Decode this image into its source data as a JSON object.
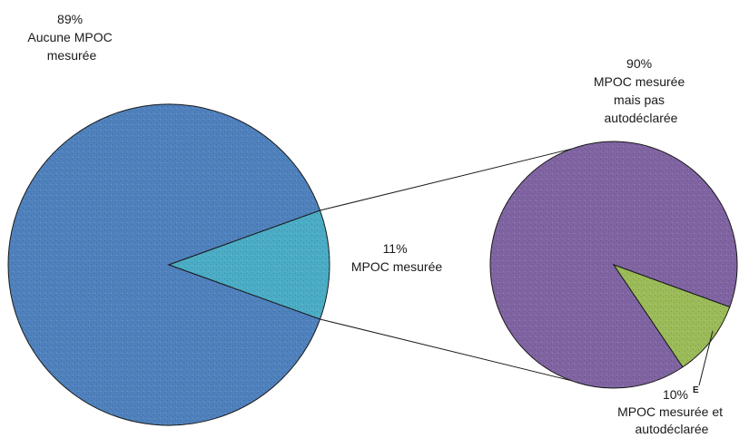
{
  "chart_data": {
    "type": "pie",
    "title": "",
    "main_pie": {
      "slices": [
        {
          "label_value": "89%",
          "label_lines": [
            "Aucune MPOC",
            "mesurée"
          ],
          "value": 89,
          "color": "#4f81bd"
        },
        {
          "label_value": "11%",
          "label_lines": [
            "MPOC mesurée"
          ],
          "value": 11,
          "color": "#4bacc6",
          "exploded": true
        }
      ]
    },
    "detail_pie": {
      "parent_slice": "MPOC mesurée",
      "slices": [
        {
          "label_value": "90%",
          "label_lines": [
            "MPOC mesurée",
            "mais pas",
            "autodéclarée"
          ],
          "value": 90,
          "color": "#8064a2"
        },
        {
          "label_value": "10%",
          "label_note": "E",
          "label_lines": [
            "MPOC mesurée et",
            "autodéclarée"
          ],
          "value": 10,
          "color": "#9bbb59"
        }
      ]
    }
  }
}
